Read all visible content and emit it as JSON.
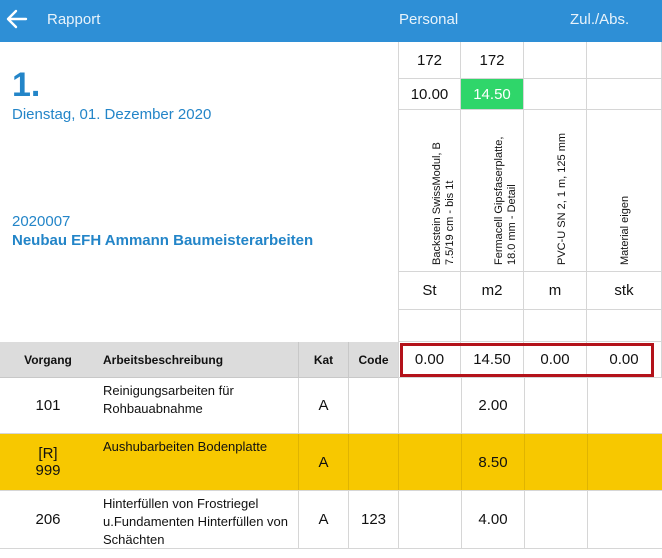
{
  "header": {
    "back_icon": "arrow-left-icon",
    "title": "Rapport",
    "tab_personal": "Personal",
    "tab_zul": "Zul./Abs."
  },
  "report": {
    "day": "1.",
    "date": "Dienstag, 01. Dezember 2020",
    "project_number": "2020007",
    "project_name": "Neubau EFH Ammann Baumeisterarbeiten"
  },
  "materials": [
    {
      "count": "172",
      "qty": "10.00",
      "name": "Backstein SwissModul, B 7.5/19 cm - bis 1t",
      "unit": "St",
      "total": "0.00"
    },
    {
      "count": "172",
      "qty": "14.50",
      "name": "Fermacell Gipsfaserplatte, 18.0 mm - Detail",
      "unit": "m2",
      "total": "14.50"
    },
    {
      "count": "",
      "qty": "",
      "name": "PVC-U SN 2, 1 m, 125 mm",
      "unit": "m",
      "total": "0.00"
    },
    {
      "count": "",
      "qty": "",
      "name": "Material eigen",
      "unit": "stk",
      "total": "0.00"
    }
  ],
  "table": {
    "col_vorgang": "Vorgang",
    "col_beschreibung": "Arbeitsbeschreibung",
    "col_kat": "Kat",
    "col_code": "Code",
    "rows": [
      {
        "marker": "",
        "vorgang": "101",
        "desc": "Reinigungsarbeiten für Rohbauabnahme",
        "kat": "A",
        "code": "",
        "q2": "2.00"
      },
      {
        "marker": "[R]",
        "vorgang": "999",
        "desc": "Aushubarbeiten Bodenplatte",
        "kat": "A",
        "code": "",
        "q2": "8.50"
      },
      {
        "marker": "",
        "vorgang": "206",
        "desc": "Hinterfüllen von Frostriegel u.Fundamenten Hinterfüllen von Schächten",
        "kat": "A",
        "code": "123",
        "q2": "4.00"
      }
    ]
  },
  "colors": {
    "header_bg": "#2e8fd6",
    "accent_text": "#2385c8",
    "highlight_cell": "#2fd66a",
    "highlight_row": "#f7c800",
    "selection_border": "#b3121a"
  }
}
